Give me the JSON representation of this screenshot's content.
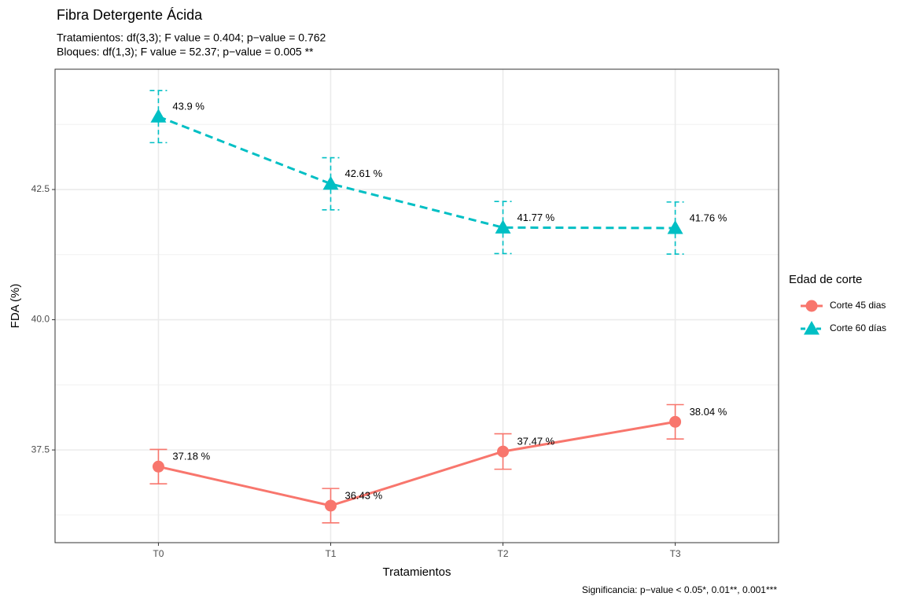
{
  "chart_data": {
    "type": "line",
    "title": "Fibra Detergente Ácida",
    "subtitle": [
      "Tratamientos: df(3,3); F value = 0.404; p−value = 0.762",
      "Bloques: df(1,3); F value = 52.37; p−value = 0.005 **"
    ],
    "caption": "Significancia: p−value < 0.05*, 0.01**, 0.001***",
    "x_label": "Tratamientos",
    "y_label": "FDA (%)",
    "legend_title": "Edad de corte",
    "categories": [
      "T0",
      "T1",
      "T2",
      "T3"
    ],
    "series": [
      {
        "name": "Corte 45 dias",
        "color": "#F8766D",
        "marker": "circle",
        "dash": false,
        "values": [
          37.18,
          36.43,
          37.47,
          38.04
        ],
        "errors": [
          0.33,
          0.33,
          0.34,
          0.33
        ],
        "value_labels": [
          "37.18 %",
          "36.43 %",
          "37.47 %",
          "38.04 %"
        ]
      },
      {
        "name": "Corte 60 días",
        "color": "#00BFC4",
        "marker": "triangle",
        "dash": true,
        "values": [
          43.9,
          42.61,
          41.77,
          41.76
        ],
        "errors": [
          0.5,
          0.5,
          0.5,
          0.5
        ],
        "value_labels": [
          "43.9 %",
          "42.61 %",
          "41.77 %",
          "41.76 %"
        ]
      }
    ],
    "ylim": [
      35.72,
      44.81
    ],
    "yticks": [
      {
        "value": 37.5,
        "label": "37.5"
      },
      {
        "value": 40,
        "label": "40.0"
      },
      {
        "value": 42.5,
        "label": "42.5"
      }
    ],
    "yminorticks": [
      36.25,
      38.75,
      41.25,
      43.75
    ],
    "grid": true,
    "legend_position": "right"
  }
}
